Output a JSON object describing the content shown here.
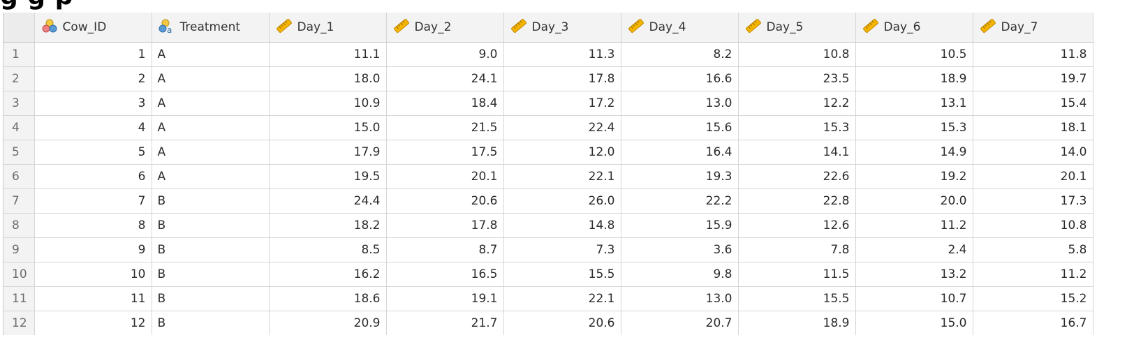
{
  "title_partial": "g                                        g p",
  "columns": [
    {
      "label": "Cow_ID",
      "icon": "nominal-circles-icon"
    },
    {
      "label": "Treatment",
      "icon": "nominal-text-icon"
    },
    {
      "label": "Day_1",
      "icon": "ruler-icon"
    },
    {
      "label": "Day_2",
      "icon": "ruler-icon"
    },
    {
      "label": "Day_3",
      "icon": "ruler-icon"
    },
    {
      "label": "Day_4",
      "icon": "ruler-icon"
    },
    {
      "label": "Day_5",
      "icon": "ruler-icon"
    },
    {
      "label": "Day_6",
      "icon": "ruler-icon"
    },
    {
      "label": "Day_7",
      "icon": "ruler-icon"
    }
  ],
  "rows": [
    {
      "n": "1",
      "cells": [
        "1",
        "A",
        "11.1",
        "9.0",
        "11.3",
        "8.2",
        "10.8",
        "10.5",
        "11.8"
      ]
    },
    {
      "n": "2",
      "cells": [
        "2",
        "A",
        "18.0",
        "24.1",
        "17.8",
        "16.6",
        "23.5",
        "18.9",
        "19.7"
      ]
    },
    {
      "n": "3",
      "cells": [
        "3",
        "A",
        "10.9",
        "18.4",
        "17.2",
        "13.0",
        "12.2",
        "13.1",
        "15.4"
      ]
    },
    {
      "n": "4",
      "cells": [
        "4",
        "A",
        "15.0",
        "21.5",
        "22.4",
        "15.6",
        "15.3",
        "15.3",
        "18.1"
      ]
    },
    {
      "n": "5",
      "cells": [
        "5",
        "A",
        "17.9",
        "17.5",
        "12.0",
        "16.4",
        "14.1",
        "14.9",
        "14.0"
      ]
    },
    {
      "n": "6",
      "cells": [
        "6",
        "A",
        "19.5",
        "20.1",
        "22.1",
        "19.3",
        "22.6",
        "19.2",
        "20.1"
      ]
    },
    {
      "n": "7",
      "cells": [
        "7",
        "B",
        "24.4",
        "20.6",
        "26.0",
        "22.2",
        "22.8",
        "20.0",
        "17.3"
      ]
    },
    {
      "n": "8",
      "cells": [
        "8",
        "B",
        "18.2",
        "17.8",
        "14.8",
        "15.9",
        "12.6",
        "11.2",
        "10.8"
      ]
    },
    {
      "n": "9",
      "cells": [
        "9",
        "B",
        "8.5",
        "8.7",
        "7.3",
        "3.6",
        "7.8",
        "2.4",
        "5.8"
      ]
    },
    {
      "n": "10",
      "cells": [
        "10",
        "B",
        "16.2",
        "16.5",
        "15.5",
        "9.8",
        "11.5",
        "13.2",
        "11.2"
      ]
    },
    {
      "n": "11",
      "cells": [
        "11",
        "B",
        "18.6",
        "19.1",
        "22.1",
        "13.0",
        "15.5",
        "10.7",
        "15.2"
      ]
    },
    {
      "n": "12",
      "cells": [
        "12",
        "B",
        "20.9",
        "21.7",
        "20.6",
        "20.7",
        "18.9",
        "15.0",
        "16.7"
      ]
    }
  ],
  "colors": {
    "header_bg": "#f3f3f3",
    "grid_line": "#d6d6d6",
    "ruler_icon": "#f5b400",
    "nominal_icon_red": "#f08080",
    "nominal_icon_blue": "#5b9bd5",
    "nominal_icon_yellow": "#f5c842"
  }
}
